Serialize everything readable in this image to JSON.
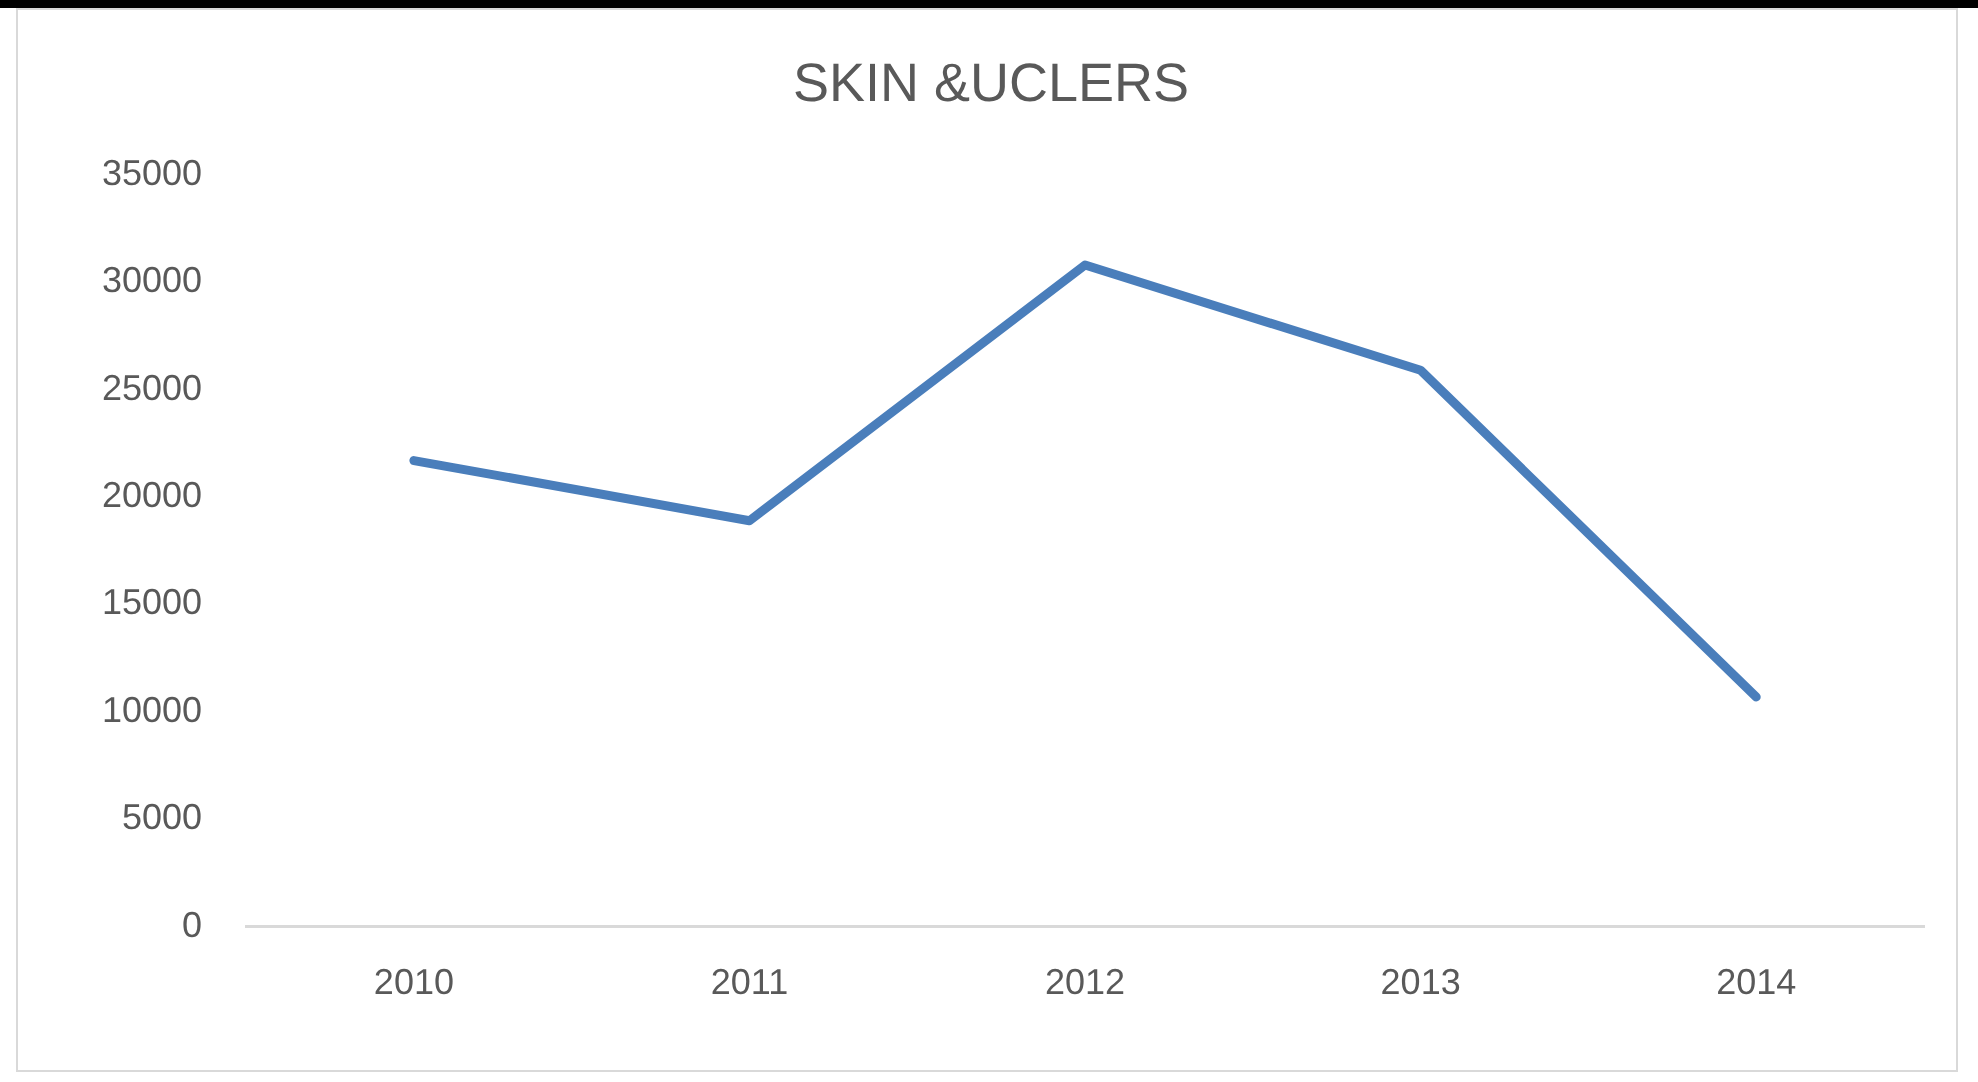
{
  "chart_data": {
    "type": "line",
    "title": "SKIN &UCLERS",
    "categories": [
      "2010",
      "2011",
      "2012",
      "2013",
      "2014"
    ],
    "series": [
      {
        "color": "#4a7ebb",
        "values": [
          21700,
          18900,
          30800,
          25900,
          10700
        ]
      }
    ],
    "ylim": [
      0,
      35000
    ],
    "yticks": [
      0,
      5000,
      10000,
      15000,
      20000,
      25000,
      30000,
      35000
    ],
    "grid": false,
    "legend": false,
    "marker": "none",
    "line_style": "solid"
  }
}
